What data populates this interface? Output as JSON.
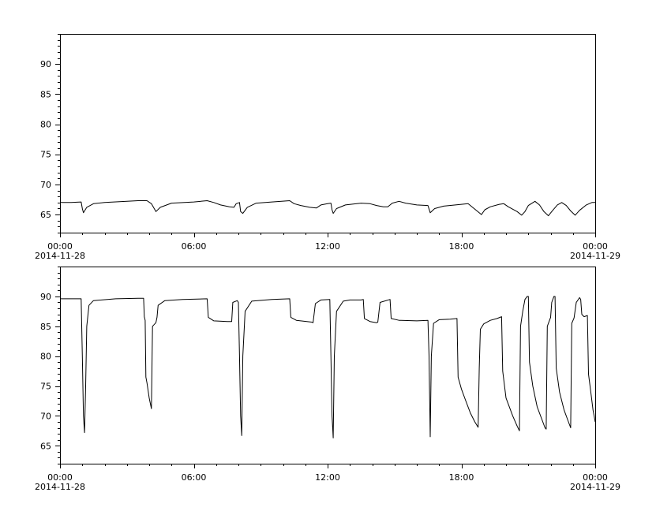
{
  "chart_data": [
    {
      "type": "line",
      "title": "",
      "xlabel": "",
      "ylabel": "",
      "x_unit": "hours since 2014-11-28 00:00",
      "xlim": [
        0,
        24
      ],
      "ylim": [
        62,
        95
      ],
      "y_ticks": [
        65,
        70,
        75,
        80,
        85,
        90
      ],
      "y_tick_labels": [
        "65",
        "70",
        "75",
        "80",
        "85",
        "90"
      ],
      "x_ticks": [
        0,
        6,
        12,
        18,
        24
      ],
      "x_tick_labels": [
        "00:00",
        "06:00",
        "12:00",
        "18:00",
        "00:00"
      ],
      "x_date_labels": [
        {
          "at": 0,
          "text": "2014-11-28"
        },
        {
          "at": 24,
          "text": "2014-11-29"
        }
      ],
      "grid": false,
      "series": [
        {
          "color": "#000000",
          "points": [
            [
              0,
              67.0
            ],
            [
              0.5,
              67.0
            ],
            [
              0.95,
              67.1
            ],
            [
              1.0,
              66.0
            ],
            [
              1.05,
              65.3
            ],
            [
              1.2,
              66.2
            ],
            [
              1.5,
              66.8
            ],
            [
              2.0,
              67.0
            ],
            [
              3.0,
              67.2
            ],
            [
              3.5,
              67.3
            ],
            [
              3.9,
              67.3
            ],
            [
              4.1,
              66.8
            ],
            [
              4.3,
              65.5
            ],
            [
              4.5,
              66.2
            ],
            [
              5.0,
              66.9
            ],
            [
              6.0,
              67.1
            ],
            [
              6.6,
              67.3
            ],
            [
              6.9,
              67.0
            ],
            [
              7.2,
              66.6
            ],
            [
              7.6,
              66.3
            ],
            [
              7.8,
              66.2
            ],
            [
              7.9,
              66.8
            ],
            [
              8.05,
              67.0
            ],
            [
              8.1,
              65.5
            ],
            [
              8.2,
              65.2
            ],
            [
              8.4,
              66.2
            ],
            [
              8.8,
              66.9
            ],
            [
              9.5,
              67.1
            ],
            [
              10.3,
              67.3
            ],
            [
              10.5,
              66.8
            ],
            [
              10.8,
              66.5
            ],
            [
              11.2,
              66.2
            ],
            [
              11.5,
              66.1
            ],
            [
              11.7,
              66.6
            ],
            [
              12.0,
              66.8
            ],
            [
              12.15,
              66.9
            ],
            [
              12.2,
              65.8
            ],
            [
              12.25,
              65.2
            ],
            [
              12.4,
              66.0
            ],
            [
              12.8,
              66.6
            ],
            [
              13.5,
              66.9
            ],
            [
              13.9,
              66.8
            ],
            [
              14.2,
              66.5
            ],
            [
              14.5,
              66.3
            ],
            [
              14.7,
              66.3
            ],
            [
              14.9,
              66.9
            ],
            [
              15.2,
              67.2
            ],
            [
              15.5,
              66.9
            ],
            [
              16.0,
              66.6
            ],
            [
              16.5,
              66.5
            ],
            [
              16.6,
              65.3
            ],
            [
              16.8,
              66.0
            ],
            [
              17.2,
              66.4
            ],
            [
              18.0,
              66.7
            ],
            [
              18.3,
              66.8
            ],
            [
              18.5,
              66.2
            ],
            [
              18.7,
              65.6
            ],
            [
              18.9,
              65.0
            ],
            [
              19.05,
              65.8
            ],
            [
              19.3,
              66.3
            ],
            [
              19.7,
              66.7
            ],
            [
              19.9,
              66.8
            ],
            [
              20.1,
              66.3
            ],
            [
              20.5,
              65.5
            ],
            [
              20.7,
              64.9
            ],
            [
              20.85,
              65.5
            ],
            [
              21.0,
              66.5
            ],
            [
              21.3,
              67.2
            ],
            [
              21.5,
              66.6
            ],
            [
              21.7,
              65.5
            ],
            [
              21.9,
              64.8
            ],
            [
              22.05,
              65.5
            ],
            [
              22.3,
              66.6
            ],
            [
              22.5,
              67.0
            ],
            [
              22.7,
              66.5
            ],
            [
              22.9,
              65.6
            ],
            [
              23.1,
              64.9
            ],
            [
              23.3,
              65.7
            ],
            [
              23.6,
              66.6
            ],
            [
              23.85,
              67.0
            ],
            [
              24.0,
              67.0
            ]
          ]
        }
      ]
    },
    {
      "type": "line",
      "title": "",
      "xlabel": "",
      "ylabel": "",
      "x_unit": "hours since 2014-11-28 00:00",
      "xlim": [
        0,
        24
      ],
      "ylim": [
        62,
        95
      ],
      "y_ticks": [
        65,
        70,
        75,
        80,
        85,
        90
      ],
      "y_tick_labels": [
        "65",
        "70",
        "75",
        "80",
        "85",
        "90"
      ],
      "x_ticks": [
        0,
        6,
        12,
        18,
        24
      ],
      "x_tick_labels": [
        "00:00",
        "06:00",
        "12:00",
        "18:00",
        "00:00"
      ],
      "x_date_labels": [
        {
          "at": 0,
          "text": "2014-11-28"
        },
        {
          "at": 24,
          "text": "2014-11-29"
        }
      ],
      "grid": false,
      "series": [
        {
          "color": "#000000",
          "points": [
            [
              0,
              89.6
            ],
            [
              0.5,
              89.6
            ],
            [
              0.95,
              89.6
            ],
            [
              1.0,
              80.0
            ],
            [
              1.05,
              70.0
            ],
            [
              1.1,
              67.2
            ],
            [
              1.15,
              75.0
            ],
            [
              1.2,
              85.0
            ],
            [
              1.3,
              88.5
            ],
            [
              1.5,
              89.3
            ],
            [
              2.5,
              89.6
            ],
            [
              3.5,
              89.7
            ],
            [
              3.75,
              89.7
            ],
            [
              3.78,
              86.6
            ],
            [
              3.82,
              86.0
            ],
            [
              3.85,
              76.5
            ],
            [
              3.9,
              75.5
            ],
            [
              4.0,
              73.0
            ],
            [
              4.1,
              71.2
            ],
            [
              4.15,
              85.0
            ],
            [
              4.3,
              85.6
            ],
            [
              4.35,
              86.5
            ],
            [
              4.4,
              88.5
            ],
            [
              4.7,
              89.3
            ],
            [
              5.5,
              89.5
            ],
            [
              6.6,
              89.6
            ],
            [
              6.65,
              86.5
            ],
            [
              6.9,
              85.9
            ],
            [
              7.5,
              85.8
            ],
            [
              7.7,
              85.8
            ],
            [
              7.75,
              89.0
            ],
            [
              7.95,
              89.3
            ],
            [
              8.0,
              89.0
            ],
            [
              8.05,
              80.0
            ],
            [
              8.1,
              70.0
            ],
            [
              8.15,
              66.7
            ],
            [
              8.2,
              80.0
            ],
            [
              8.3,
              87.5
            ],
            [
              8.6,
              89.2
            ],
            [
              9.5,
              89.5
            ],
            [
              10.3,
              89.6
            ],
            [
              10.35,
              86.5
            ],
            [
              10.6,
              86.0
            ],
            [
              11.3,
              85.7
            ],
            [
              11.35,
              85.6
            ],
            [
              11.45,
              88.8
            ],
            [
              11.7,
              89.4
            ],
            [
              12.1,
              89.5
            ],
            [
              12.15,
              80.0
            ],
            [
              12.2,
              70.0
            ],
            [
              12.25,
              66.3
            ],
            [
              12.3,
              80.0
            ],
            [
              12.4,
              87.5
            ],
            [
              12.7,
              89.2
            ],
            [
              13.0,
              89.4
            ],
            [
              13.5,
              89.4
            ],
            [
              13.6,
              89.5
            ],
            [
              13.65,
              86.3
            ],
            [
              13.9,
              85.8
            ],
            [
              14.2,
              85.6
            ],
            [
              14.25,
              85.7
            ],
            [
              14.35,
              89.0
            ],
            [
              14.8,
              89.5
            ],
            [
              14.85,
              86.3
            ],
            [
              15.2,
              86.0
            ],
            [
              16.0,
              85.9
            ],
            [
              16.5,
              86.0
            ],
            [
              16.55,
              80.0
            ],
            [
              16.6,
              66.5
            ],
            [
              16.65,
              80.0
            ],
            [
              16.75,
              85.5
            ],
            [
              17.0,
              86.1
            ],
            [
              17.5,
              86.2
            ],
            [
              17.8,
              86.3
            ],
            [
              17.85,
              76.5
            ],
            [
              18.0,
              74.5
            ],
            [
              18.2,
              72.5
            ],
            [
              18.4,
              70.5
            ],
            [
              18.6,
              69.0
            ],
            [
              18.75,
              68.1
            ],
            [
              18.8,
              78.0
            ],
            [
              18.85,
              84.5
            ],
            [
              19.0,
              85.4
            ],
            [
              19.3,
              86.0
            ],
            [
              19.6,
              86.3
            ],
            [
              19.8,
              86.6
            ],
            [
              19.85,
              77.5
            ],
            [
              20.0,
              73.0
            ],
            [
              20.3,
              70.0
            ],
            [
              20.5,
              68.3
            ],
            [
              20.6,
              67.5
            ],
            [
              20.65,
              85.0
            ],
            [
              20.75,
              87.5
            ],
            [
              20.85,
              89.5
            ],
            [
              20.95,
              90.0
            ],
            [
              21.0,
              90.0
            ],
            [
              21.05,
              79.0
            ],
            [
              21.2,
              75.0
            ],
            [
              21.4,
              71.5
            ],
            [
              21.6,
              69.5
            ],
            [
              21.75,
              68.0
            ],
            [
              21.8,
              67.8
            ],
            [
              21.85,
              85.0
            ],
            [
              22.0,
              86.5
            ],
            [
              22.05,
              89.0
            ],
            [
              22.15,
              90.0
            ],
            [
              22.2,
              90.0
            ],
            [
              22.25,
              78.0
            ],
            [
              22.4,
              74.0
            ],
            [
              22.6,
              71.0
            ],
            [
              22.8,
              69.0
            ],
            [
              22.9,
              68.0
            ],
            [
              22.95,
              85.5
            ],
            [
              23.05,
              86.4
            ],
            [
              23.15,
              89.0
            ],
            [
              23.3,
              89.8
            ],
            [
              23.35,
              89.5
            ],
            [
              23.4,
              87.0
            ],
            [
              23.5,
              86.6
            ],
            [
              23.65,
              86.8
            ],
            [
              23.7,
              77.0
            ],
            [
              23.8,
              74.0
            ],
            [
              23.9,
              71.0
            ],
            [
              24.0,
              69.0
            ]
          ]
        }
      ]
    }
  ]
}
